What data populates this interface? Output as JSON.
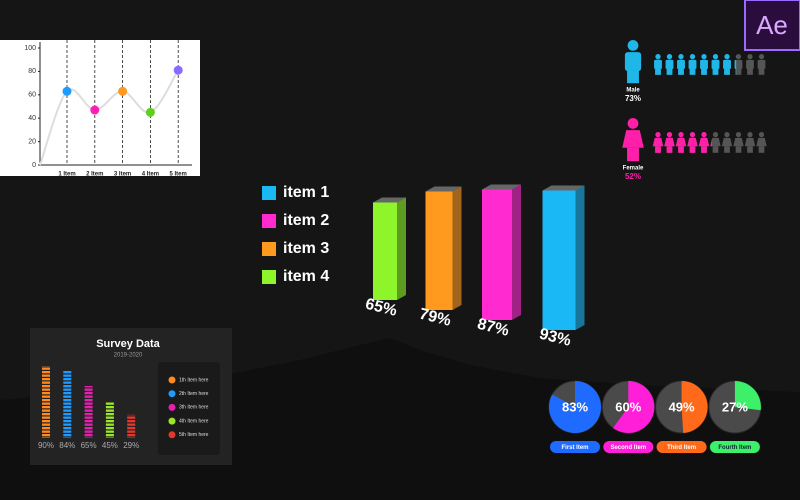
{
  "app_badge": "Ae",
  "chart_data": [
    {
      "type": "line",
      "categories": [
        "1 Item",
        "2 Item",
        "3 Item",
        "4 Item",
        "5 Item"
      ],
      "values": [
        63,
        47,
        63,
        45,
        81
      ],
      "colors": [
        "#1e9bff",
        "#ff1fb4",
        "#ff9a1f",
        "#5ecf1f",
        "#8a6bff"
      ],
      "line_color": "#ffffff",
      "ylim": [
        0,
        100
      ],
      "yticks": [
        0,
        20,
        40,
        60,
        80,
        100
      ],
      "grid": true
    },
    {
      "type": "bar3d",
      "categories": [
        "item 1",
        "item 2",
        "item 3",
        "item 4"
      ],
      "values": [
        93,
        87,
        79,
        65
      ],
      "value_labels": [
        "93%",
        "87%",
        "79%",
        "65%"
      ],
      "colors": [
        "#1ab8f5",
        "#ff2ad0",
        "#ff9a1f",
        "#8ef52a"
      ]
    },
    {
      "type": "pictogram",
      "categories": [
        "Male",
        "Female"
      ],
      "values": [
        73,
        52
      ],
      "value_labels": [
        "73%",
        "52%"
      ],
      "colors": [
        "#1fb6e8",
        "#ff1fa8"
      ],
      "label_colors": [
        "#ffffff",
        "#ff1fa8"
      ]
    },
    {
      "type": "bar",
      "title": "Survey Data",
      "subtitle": "2019-2020",
      "categories": [
        "1th Item here",
        "2th Item here",
        "3th Item here",
        "4th Item here",
        "5th Item here"
      ],
      "values": [
        90,
        84,
        65,
        45,
        29
      ],
      "value_labels": [
        "90%",
        "84%",
        "65%",
        "45%",
        "29%"
      ],
      "colors": [
        "#ff8a1f",
        "#1f9bff",
        "#e61fb0",
        "#9be62a",
        "#e6372a"
      ]
    },
    {
      "type": "pie",
      "categories": [
        "First Item",
        "Second Item",
        "Third Item",
        "Fourth Item"
      ],
      "values": [
        83,
        60,
        49,
        27
      ],
      "value_labels": [
        "83%",
        "60%",
        "49%",
        "27%"
      ],
      "colors": [
        "#1f6bff",
        "#ff1fd8",
        "#ff6a1a",
        "#3cf06a"
      ]
    }
  ]
}
